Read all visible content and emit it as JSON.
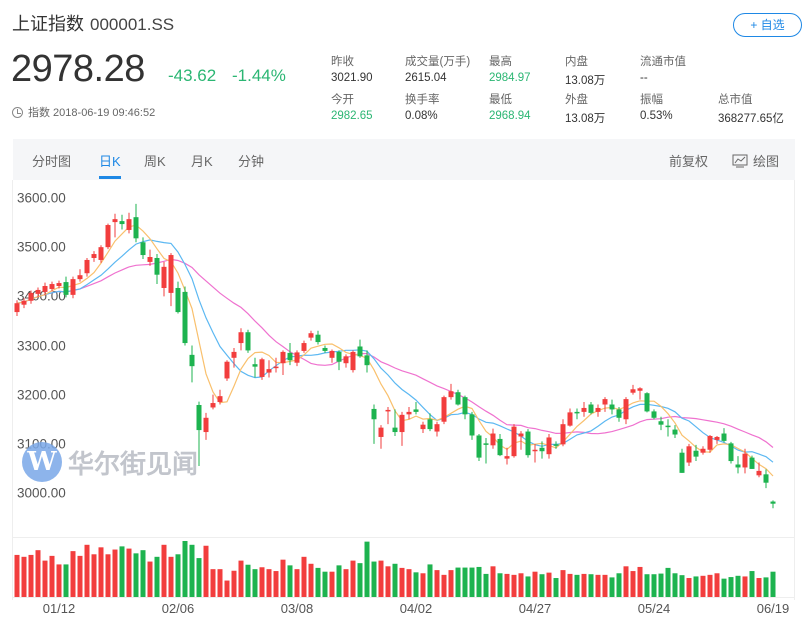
{
  "header": {
    "name": "上证指数",
    "code": "000001.SS",
    "favorite_label": "+ 自选"
  },
  "quote": {
    "price": "2978.28",
    "change": "-43.62",
    "change_pct": "-1.44%",
    "time_label": "指数 2018-06-19 09:46:52"
  },
  "stats": [
    {
      "label": "昨收",
      "value": "3021.90",
      "color": "normal"
    },
    {
      "label": "成交量(万手)",
      "value": "2615.04",
      "color": "normal"
    },
    {
      "label": "最高",
      "value": "2984.97",
      "color": "down"
    },
    {
      "label": "内盘",
      "value": "13.08万",
      "color": "normal"
    },
    {
      "label": "流通市值",
      "value": "--",
      "color": "normal"
    },
    {
      "label": "今开",
      "value": "2982.65",
      "color": "down"
    },
    {
      "label": "换手率",
      "value": "0.08%",
      "color": "normal"
    },
    {
      "label": "最低",
      "value": "2968.94",
      "color": "down"
    },
    {
      "label": "外盘",
      "value": "13.08万",
      "color": "normal"
    },
    {
      "label": "振幅",
      "value": "0.53%",
      "color": "normal"
    },
    {
      "label": "总市值",
      "value": "368277.65亿",
      "color": "normal"
    }
  ],
  "tabs": [
    {
      "label": "分时图"
    },
    {
      "label": "日K",
      "active": true
    },
    {
      "label": "周K"
    },
    {
      "label": "月K"
    },
    {
      "label": "分钟"
    }
  ],
  "tools": {
    "adjust_label": "前复权",
    "draw_label": "绘图",
    "draw_icon": "chart-draw-icon"
  },
  "watermark": {
    "logo": "W",
    "text": "华尔街见闻"
  },
  "colors": {
    "up": "#f23d3d",
    "down": "#1db34f",
    "ma5": "#f9c06d",
    "ma10": "#5cb8f2",
    "ma20": "#ef72cf",
    "accent": "#1e88e5"
  },
  "chart_data": {
    "type": "candlestick",
    "ylim": [
      2960,
      3610
    ],
    "y_ticks": [
      "3000.00",
      "3100.00",
      "3200.00",
      "3300.00",
      "3400.00",
      "3500.00",
      "3600.00"
    ],
    "x_ticks": [
      {
        "label": "01/12",
        "index": 6
      },
      {
        "label": "02/06",
        "index": 23
      },
      {
        "label": "03/08",
        "index": 40
      },
      {
        "label": "04/02",
        "index": 57
      },
      {
        "label": "04/27",
        "index": 74
      },
      {
        "label": "05/24",
        "index": 91
      },
      {
        "label": "06/19",
        "index": 108
      }
    ],
    "moving_averages": [
      5,
      10,
      20
    ],
    "ohlc": [
      [
        3368,
        3392,
        3360,
        3386
      ],
      [
        3383,
        3396,
        3376,
        3391
      ],
      [
        3391,
        3412,
        3385,
        3407
      ],
      [
        3405,
        3418,
        3398,
        3413
      ],
      [
        3409,
        3428,
        3402,
        3421
      ],
      [
        3415,
        3430,
        3410,
        3425
      ],
      [
        3421,
        3432,
        3416,
        3427
      ],
      [
        3429,
        3440,
        3398,
        3403
      ],
      [
        3403,
        3440,
        3396,
        3435
      ],
      [
        3435,
        3455,
        3430,
        3443
      ],
      [
        3447,
        3478,
        3440,
        3474
      ],
      [
        3478,
        3492,
        3470,
        3486
      ],
      [
        3474,
        3504,
        3468,
        3500
      ],
      [
        3500,
        3548,
        3496,
        3545
      ],
      [
        3551,
        3568,
        3520,
        3557
      ],
      [
        3553,
        3566,
        3536,
        3547
      ],
      [
        3535,
        3570,
        3528,
        3557
      ],
      [
        3561,
        3588,
        3510,
        3518
      ],
      [
        3510,
        3520,
        3476,
        3484
      ],
      [
        3470,
        3495,
        3462,
        3480
      ],
      [
        3478,
        3486,
        3425,
        3444
      ],
      [
        3417,
        3470,
        3400,
        3460
      ],
      [
        3407,
        3488,
        3380,
        3484
      ],
      [
        3417,
        3430,
        3365,
        3368
      ],
      [
        3409,
        3420,
        3300,
        3305
      ],
      [
        3281,
        3300,
        3225,
        3258
      ],
      [
        3179,
        3186,
        3055,
        3128
      ],
      [
        3124,
        3163,
        3108,
        3153
      ],
      [
        3174,
        3200,
        3170,
        3183
      ],
      [
        3185,
        3210,
        3180,
        3197
      ],
      [
        3233,
        3270,
        3228,
        3267
      ],
      [
        3275,
        3295,
        3255,
        3287
      ],
      [
        3305,
        3335,
        3290,
        3327
      ],
      [
        3327,
        3332,
        3285,
        3290
      ],
      [
        3262,
        3275,
        3235,
        3257
      ],
      [
        3236,
        3275,
        3230,
        3272
      ],
      [
        3245,
        3270,
        3235,
        3252
      ],
      [
        3254,
        3275,
        3245,
        3257
      ],
      [
        3264,
        3290,
        3240,
        3287
      ],
      [
        3285,
        3305,
        3260,
        3270
      ],
      [
        3265,
        3290,
        3258,
        3286
      ],
      [
        3289,
        3310,
        3285,
        3305
      ],
      [
        3316,
        3330,
        3310,
        3325
      ],
      [
        3322,
        3330,
        3302,
        3307
      ],
      [
        3295,
        3300,
        3285,
        3289
      ],
      [
        3275,
        3292,
        3265,
        3289
      ],
      [
        3287,
        3290,
        3250,
        3267
      ],
      [
        3264,
        3282,
        3255,
        3278
      ],
      [
        3250,
        3290,
        3245,
        3287
      ],
      [
        3298,
        3312,
        3275,
        3278
      ],
      [
        3280,
        3290,
        3245,
        3260
      ],
      [
        3171,
        3180,
        3100,
        3150
      ],
      [
        3114,
        3138,
        3090,
        3133
      ],
      [
        3166,
        3175,
        3140,
        3169
      ],
      [
        3133,
        3170,
        3116,
        3124
      ],
      [
        3124,
        3165,
        3096,
        3159
      ],
      [
        3160,
        3175,
        3150,
        3165
      ],
      [
        3170,
        3185,
        3160,
        3165
      ],
      [
        3130,
        3145,
        3122,
        3139
      ],
      [
        3150,
        3162,
        3126,
        3130
      ],
      [
        3125,
        3145,
        3115,
        3140
      ],
      [
        3145,
        3198,
        3140,
        3195
      ],
      [
        3195,
        3222,
        3190,
        3207
      ],
      [
        3205,
        3210,
        3178,
        3180
      ],
      [
        3195,
        3198,
        3150,
        3160
      ],
      [
        3160,
        3165,
        3108,
        3117
      ],
      [
        3117,
        3120,
        3065,
        3072
      ],
      [
        3101,
        3112,
        3060,
        3099
      ],
      [
        3097,
        3131,
        3090,
        3121
      ],
      [
        3110,
        3120,
        3075,
        3077
      ],
      [
        3070,
        3092,
        3058,
        3075
      ],
      [
        3075,
        3140,
        3072,
        3135
      ],
      [
        3115,
        3126,
        3088,
        3121
      ],
      [
        3125,
        3130,
        3072,
        3077
      ],
      [
        3085,
        3100,
        3062,
        3088
      ],
      [
        3092,
        3105,
        3070,
        3085
      ],
      [
        3079,
        3120,
        3070,
        3113
      ],
      [
        3099,
        3105,
        3090,
        3096
      ],
      [
        3099,
        3150,
        3095,
        3140
      ],
      [
        3137,
        3172,
        3135,
        3164
      ],
      [
        3165,
        3172,
        3150,
        3164
      ],
      [
        3165,
        3185,
        3155,
        3173
      ],
      [
        3180,
        3185,
        3160,
        3163
      ],
      [
        3165,
        3180,
        3155,
        3173
      ],
      [
        3180,
        3195,
        3165,
        3191
      ],
      [
        3180,
        3190,
        3160,
        3170
      ],
      [
        3170,
        3175,
        3145,
        3153
      ],
      [
        3150,
        3195,
        3140,
        3191
      ],
      [
        3204,
        3220,
        3200,
        3211
      ],
      [
        3208,
        3215,
        3190,
        3213
      ],
      [
        3203,
        3205,
        3164,
        3166
      ],
      [
        3166,
        3170,
        3150,
        3153
      ],
      [
        3146,
        3155,
        3128,
        3139
      ],
      [
        3137,
        3150,
        3115,
        3136
      ],
      [
        3129,
        3138,
        3112,
        3119
      ],
      [
        3082,
        3090,
        3041,
        3041
      ],
      [
        3062,
        3100,
        3055,
        3095
      ],
      [
        3086,
        3098,
        3065,
        3074
      ],
      [
        3082,
        3095,
        3078,
        3090
      ],
      [
        3088,
        3118,
        3082,
        3116
      ],
      [
        3108,
        3116,
        3100,
        3114
      ],
      [
        3121,
        3132,
        3103,
        3106
      ],
      [
        3101,
        3104,
        3060,
        3065
      ],
      [
        3058,
        3075,
        3040,
        3052
      ],
      [
        3052,
        3090,
        3040,
        3080
      ],
      [
        3072,
        3076,
        3049,
        3049
      ],
      [
        3036,
        3062,
        3032,
        3045
      ],
      [
        3038,
        3048,
        3010,
        3021
      ],
      [
        2982.65,
        2984.97,
        2968.94,
        2978.28
      ]
    ],
    "volume": [
      133,
      127,
      133,
      148,
      115,
      130,
      103,
      103,
      145,
      130,
      165,
      135,
      157,
      135,
      150,
      160,
      153,
      138,
      148,
      112,
      127,
      165,
      127,
      135,
      177,
      165,
      123,
      162,
      88,
      88,
      52,
      83,
      115,
      102,
      88,
      94,
      88,
      82,
      118,
      100,
      88,
      127,
      105,
      92,
      80,
      80,
      100,
      88,
      115,
      107,
      175,
      112,
      115,
      97,
      105,
      92,
      88,
      78,
      75,
      103,
      85,
      70,
      85,
      93,
      93,
      93,
      95,
      73,
      97,
      75,
      73,
      70,
      75,
      65,
      80,
      72,
      77,
      60,
      85,
      73,
      70,
      73,
      72,
      70,
      70,
      62,
      75,
      97,
      82,
      95,
      72,
      72,
      74,
      92,
      75,
      69,
      60,
      65,
      67,
      70,
      75,
      58,
      63,
      67,
      65,
      82,
      60,
      62,
      80
    ]
  }
}
